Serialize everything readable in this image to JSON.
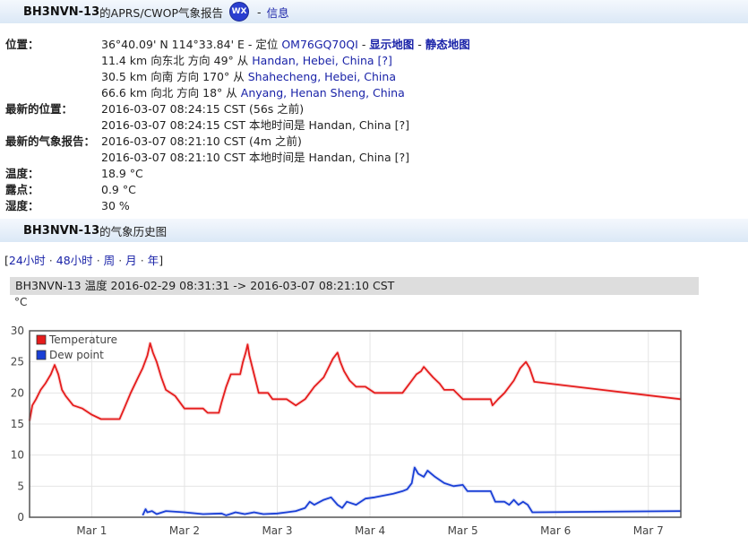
{
  "header": {
    "callsign": "BH3NVN-13",
    "title_suffix": " 的APRS/CWOP气象报告",
    "wx_badge": "WX",
    "info_link": "信息"
  },
  "info": {
    "position_label": "位置：",
    "coords": "36°40.09' N 114°33.84' E - 定位",
    "locator": "OM76GQ70QI",
    "map_link": "显示地图",
    "static_map_link": "静态地图",
    "near": [
      {
        "dist": "11.4 km 向东北 方向 49° 从",
        "place": "Handan, Hebei, China",
        "suffix": "[?]"
      },
      {
        "dist": "30.5 km 向南 方向 170° 从",
        "place": "Shahecheng, Hebei, China",
        "suffix": ""
      },
      {
        "dist": "66.6 km 向北 方向 18° 从",
        "place": "Anyang, Henan Sheng, China",
        "suffix": ""
      }
    ],
    "last_pos_label": "最新的位置：",
    "last_pos_time": "2016-03-07 08:24:15 CST (56s 之前)",
    "last_pos_local": "2016-03-07 08:24:15 CST 本地时间是 Handan, China [?]",
    "last_wx_label": "最新的气象报告：",
    "last_wx_time": "2016-03-07 08:21:10 CST (4m 之前)",
    "last_wx_local": "2016-03-07 08:21:10 CST 本地时间是 Handan, China [?]",
    "temp_label": "温度：",
    "temp_value": "18.9 °C",
    "dew_label": "露点：",
    "dew_value": "0.9 °C",
    "humidity_label": "湿度：",
    "humidity_value": "30 %"
  },
  "history": {
    "callsign": "BH3NVN-13",
    "title_suffix": " 的气象历史图"
  },
  "periods": {
    "open": "[",
    "close": "]",
    "sep": "·",
    "items": [
      "24小时",
      "48小时",
      "周",
      "月",
      "年"
    ]
  },
  "chart_header": "BH3NVN-13 温度 2016-02-29 08:31:31 -> 2016-03-07 08:21:10 CST",
  "chart_unit": "°C",
  "chart_data": {
    "type": "line",
    "title": "BH3NVN-13 温度 2016-02-29 08:31:31 -> 2016-03-07 08:21:10 CST",
    "ylabel": "°C",
    "ylim": [
      0,
      30
    ],
    "yticks": [
      0,
      5,
      10,
      15,
      20,
      25,
      30
    ],
    "xlim": [
      0.33,
      7.35
    ],
    "xticks": [
      {
        "x": 1,
        "label": "Mar 1"
      },
      {
        "x": 2,
        "label": "Mar 2"
      },
      {
        "x": 3,
        "label": "Mar 3"
      },
      {
        "x": 4,
        "label": "Mar 4"
      },
      {
        "x": 5,
        "label": "Mar 5"
      },
      {
        "x": 6,
        "label": "Mar 6"
      },
      {
        "x": 7,
        "label": "Mar 7"
      }
    ],
    "grid": true,
    "legend_position": "top-left",
    "series": [
      {
        "name": "Temperature",
        "color": "#e51c1c",
        "points": [
          [
            0.33,
            15.5
          ],
          [
            0.36,
            18
          ],
          [
            0.4,
            19
          ],
          [
            0.45,
            20.5
          ],
          [
            0.5,
            21.5
          ],
          [
            0.56,
            23
          ],
          [
            0.6,
            24.5
          ],
          [
            0.64,
            23
          ],
          [
            0.68,
            20.5
          ],
          [
            0.72,
            19.5
          ],
          [
            0.8,
            18
          ],
          [
            0.9,
            17.5
          ],
          [
            1.0,
            16.5
          ],
          [
            1.1,
            15.8
          ],
          [
            1.3,
            15.8
          ],
          [
            1.35,
            17.5
          ],
          [
            1.42,
            20
          ],
          [
            1.5,
            22.5
          ],
          [
            1.55,
            24
          ],
          [
            1.6,
            26
          ],
          [
            1.63,
            28
          ],
          [
            1.66,
            26.5
          ],
          [
            1.7,
            25
          ],
          [
            1.75,
            22.5
          ],
          [
            1.8,
            20.5
          ],
          [
            1.9,
            19.5
          ],
          [
            2.0,
            17.5
          ],
          [
            2.2,
            17.5
          ],
          [
            2.25,
            16.8
          ],
          [
            2.37,
            16.8
          ],
          [
            2.4,
            18.5
          ],
          [
            2.45,
            21
          ],
          [
            2.5,
            23
          ],
          [
            2.6,
            23
          ],
          [
            2.63,
            25
          ],
          [
            2.66,
            26.5
          ],
          [
            2.68,
            27.8
          ],
          [
            2.7,
            26
          ],
          [
            2.75,
            23
          ],
          [
            2.8,
            20
          ],
          [
            2.9,
            20
          ],
          [
            2.95,
            19
          ],
          [
            3.1,
            19
          ],
          [
            3.2,
            18
          ],
          [
            3.25,
            18.5
          ],
          [
            3.3,
            19
          ],
          [
            3.4,
            21
          ],
          [
            3.5,
            22.5
          ],
          [
            3.55,
            24
          ],
          [
            3.6,
            25.5
          ],
          [
            3.65,
            26.5
          ],
          [
            3.68,
            25
          ],
          [
            3.72,
            23.5
          ],
          [
            3.78,
            22
          ],
          [
            3.85,
            21
          ],
          [
            3.95,
            21
          ],
          [
            4.05,
            20
          ],
          [
            4.35,
            20
          ],
          [
            4.4,
            21
          ],
          [
            4.45,
            22
          ],
          [
            4.5,
            23
          ],
          [
            4.55,
            23.5
          ],
          [
            4.58,
            24.2
          ],
          [
            4.62,
            23.5
          ],
          [
            4.68,
            22.5
          ],
          [
            4.75,
            21.5
          ],
          [
            4.8,
            20.5
          ],
          [
            4.9,
            20.5
          ],
          [
            5.0,
            19
          ],
          [
            5.3,
            19
          ],
          [
            5.32,
            18
          ],
          [
            5.38,
            19
          ],
          [
            5.45,
            20
          ],
          [
            5.55,
            22
          ],
          [
            5.62,
            24
          ],
          [
            5.68,
            25
          ],
          [
            5.72,
            24
          ],
          [
            5.77,
            21.8
          ],
          [
            7.35,
            19
          ]
        ]
      },
      {
        "name": "Dew point",
        "color": "#1a3fd6",
        "points": [
          [
            1.55,
            0.3
          ],
          [
            1.58,
            1.3
          ],
          [
            1.6,
            0.8
          ],
          [
            1.65,
            1.0
          ],
          [
            1.7,
            0.5
          ],
          [
            1.8,
            1.0
          ],
          [
            2.0,
            0.8
          ],
          [
            2.2,
            0.5
          ],
          [
            2.4,
            0.6
          ],
          [
            2.45,
            0.3
          ],
          [
            2.55,
            0.8
          ],
          [
            2.65,
            0.5
          ],
          [
            2.75,
            0.8
          ],
          [
            2.85,
            0.5
          ],
          [
            3.0,
            0.6
          ],
          [
            3.1,
            0.8
          ],
          [
            3.2,
            1.0
          ],
          [
            3.3,
            1.5
          ],
          [
            3.35,
            2.5
          ],
          [
            3.4,
            2.0
          ],
          [
            3.5,
            2.8
          ],
          [
            3.58,
            3.2
          ],
          [
            3.65,
            2.0
          ],
          [
            3.7,
            1.5
          ],
          [
            3.75,
            2.5
          ],
          [
            3.85,
            2.0
          ],
          [
            3.95,
            3.0
          ],
          [
            4.05,
            3.2
          ],
          [
            4.15,
            3.5
          ],
          [
            4.25,
            3.8
          ],
          [
            4.35,
            4.2
          ],
          [
            4.4,
            4.5
          ],
          [
            4.45,
            5.5
          ],
          [
            4.48,
            8.0
          ],
          [
            4.52,
            7.0
          ],
          [
            4.58,
            6.5
          ],
          [
            4.62,
            7.5
          ],
          [
            4.7,
            6.5
          ],
          [
            4.75,
            6.0
          ],
          [
            4.8,
            5.5
          ],
          [
            4.9,
            5.0
          ],
          [
            5.0,
            5.2
          ],
          [
            5.05,
            4.2
          ],
          [
            5.3,
            4.2
          ],
          [
            5.35,
            2.5
          ],
          [
            5.45,
            2.5
          ],
          [
            5.5,
            2.0
          ],
          [
            5.55,
            2.8
          ],
          [
            5.6,
            2.0
          ],
          [
            5.65,
            2.5
          ],
          [
            5.7,
            2.0
          ],
          [
            5.75,
            0.8
          ],
          [
            7.35,
            1.0
          ]
        ]
      }
    ]
  }
}
